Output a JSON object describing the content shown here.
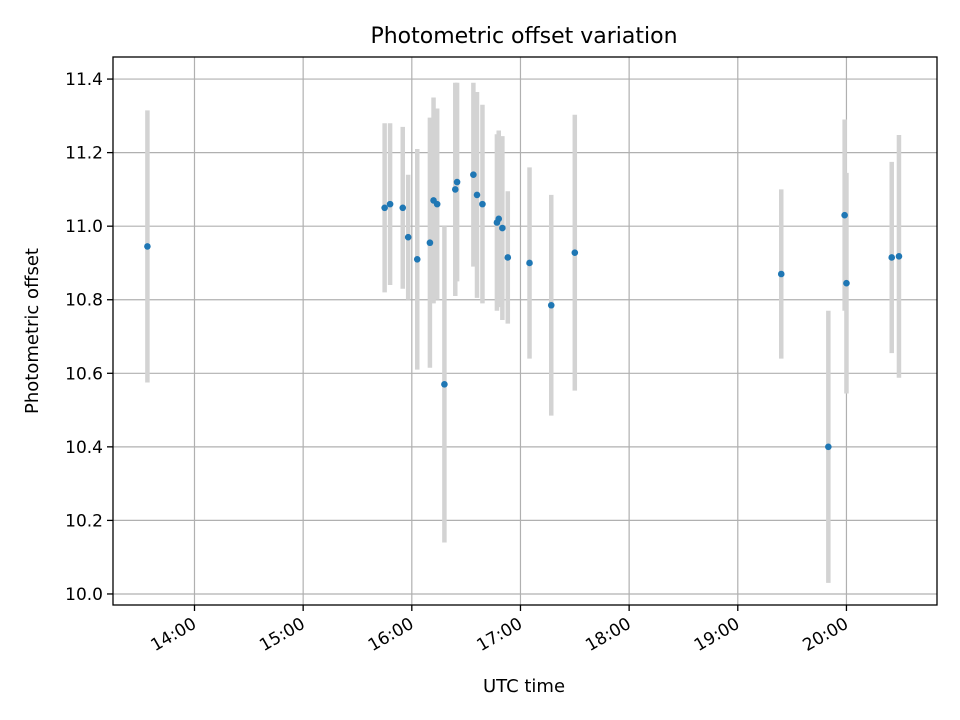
{
  "chart_data": {
    "type": "scatter",
    "title": "Photometric offset variation",
    "xlabel": "UTC time",
    "ylabel": "Photometric offset",
    "x_ticks": [
      "14:00",
      "15:00",
      "16:00",
      "17:00",
      "18:00",
      "19:00",
      "20:00"
    ],
    "y_ticks": [
      "10.0",
      "10.2",
      "10.4",
      "10.6",
      "10.8",
      "11.0",
      "11.2",
      "11.4"
    ],
    "xlim": [
      "13:15",
      "20:50"
    ],
    "ylim": [
      9.97,
      11.46
    ],
    "grid": true,
    "marker_color": "#1f77b4",
    "errorbar_color": "#d3d3d3",
    "points": [
      {
        "time": "13:34",
        "y": 10.945,
        "err": 0.37
      },
      {
        "time": "15:45",
        "y": 11.05,
        "err": 0.23
      },
      {
        "time": "15:48",
        "y": 11.06,
        "err": 0.22
      },
      {
        "time": "15:55",
        "y": 11.05,
        "err": 0.22
      },
      {
        "time": "15:58",
        "y": 10.97,
        "err": 0.17
      },
      {
        "time": "16:03",
        "y": 10.91,
        "err": 0.3
      },
      {
        "time": "16:10",
        "y": 10.955,
        "err": 0.34
      },
      {
        "time": "16:12",
        "y": 11.07,
        "err": 0.28
      },
      {
        "time": "16:14",
        "y": 11.06,
        "err": 0.26
      },
      {
        "time": "16:18",
        "y": 10.57,
        "err": 0.43
      },
      {
        "time": "16:24",
        "y": 11.1,
        "err": 0.29
      },
      {
        "time": "16:25",
        "y": 11.12,
        "err": 0.27
      },
      {
        "time": "16:34",
        "y": 11.14,
        "err": 0.25
      },
      {
        "time": "16:36",
        "y": 11.085,
        "err": 0.28
      },
      {
        "time": "16:39",
        "y": 11.06,
        "err": 0.27
      },
      {
        "time": "16:47",
        "y": 11.01,
        "err": 0.24
      },
      {
        "time": "16:48",
        "y": 11.02,
        "err": 0.24
      },
      {
        "time": "16:50",
        "y": 10.995,
        "err": 0.25
      },
      {
        "time": "16:53",
        "y": 10.915,
        "err": 0.18
      },
      {
        "time": "17:05",
        "y": 10.9,
        "err": 0.26
      },
      {
        "time": "17:17",
        "y": 10.785,
        "err": 0.3
      },
      {
        "time": "17:30",
        "y": 10.928,
        "err": 0.375
      },
      {
        "time": "19:24",
        "y": 10.87,
        "err": 0.23
      },
      {
        "time": "19:50",
        "y": 10.4,
        "err": 0.37
      },
      {
        "time": "19:59",
        "y": 11.03,
        "err": 0.26
      },
      {
        "time": "20:00",
        "y": 10.845,
        "err": 0.3
      },
      {
        "time": "20:25",
        "y": 10.915,
        "err": 0.26
      },
      {
        "time": "20:29",
        "y": 10.918,
        "err": 0.33
      }
    ]
  }
}
